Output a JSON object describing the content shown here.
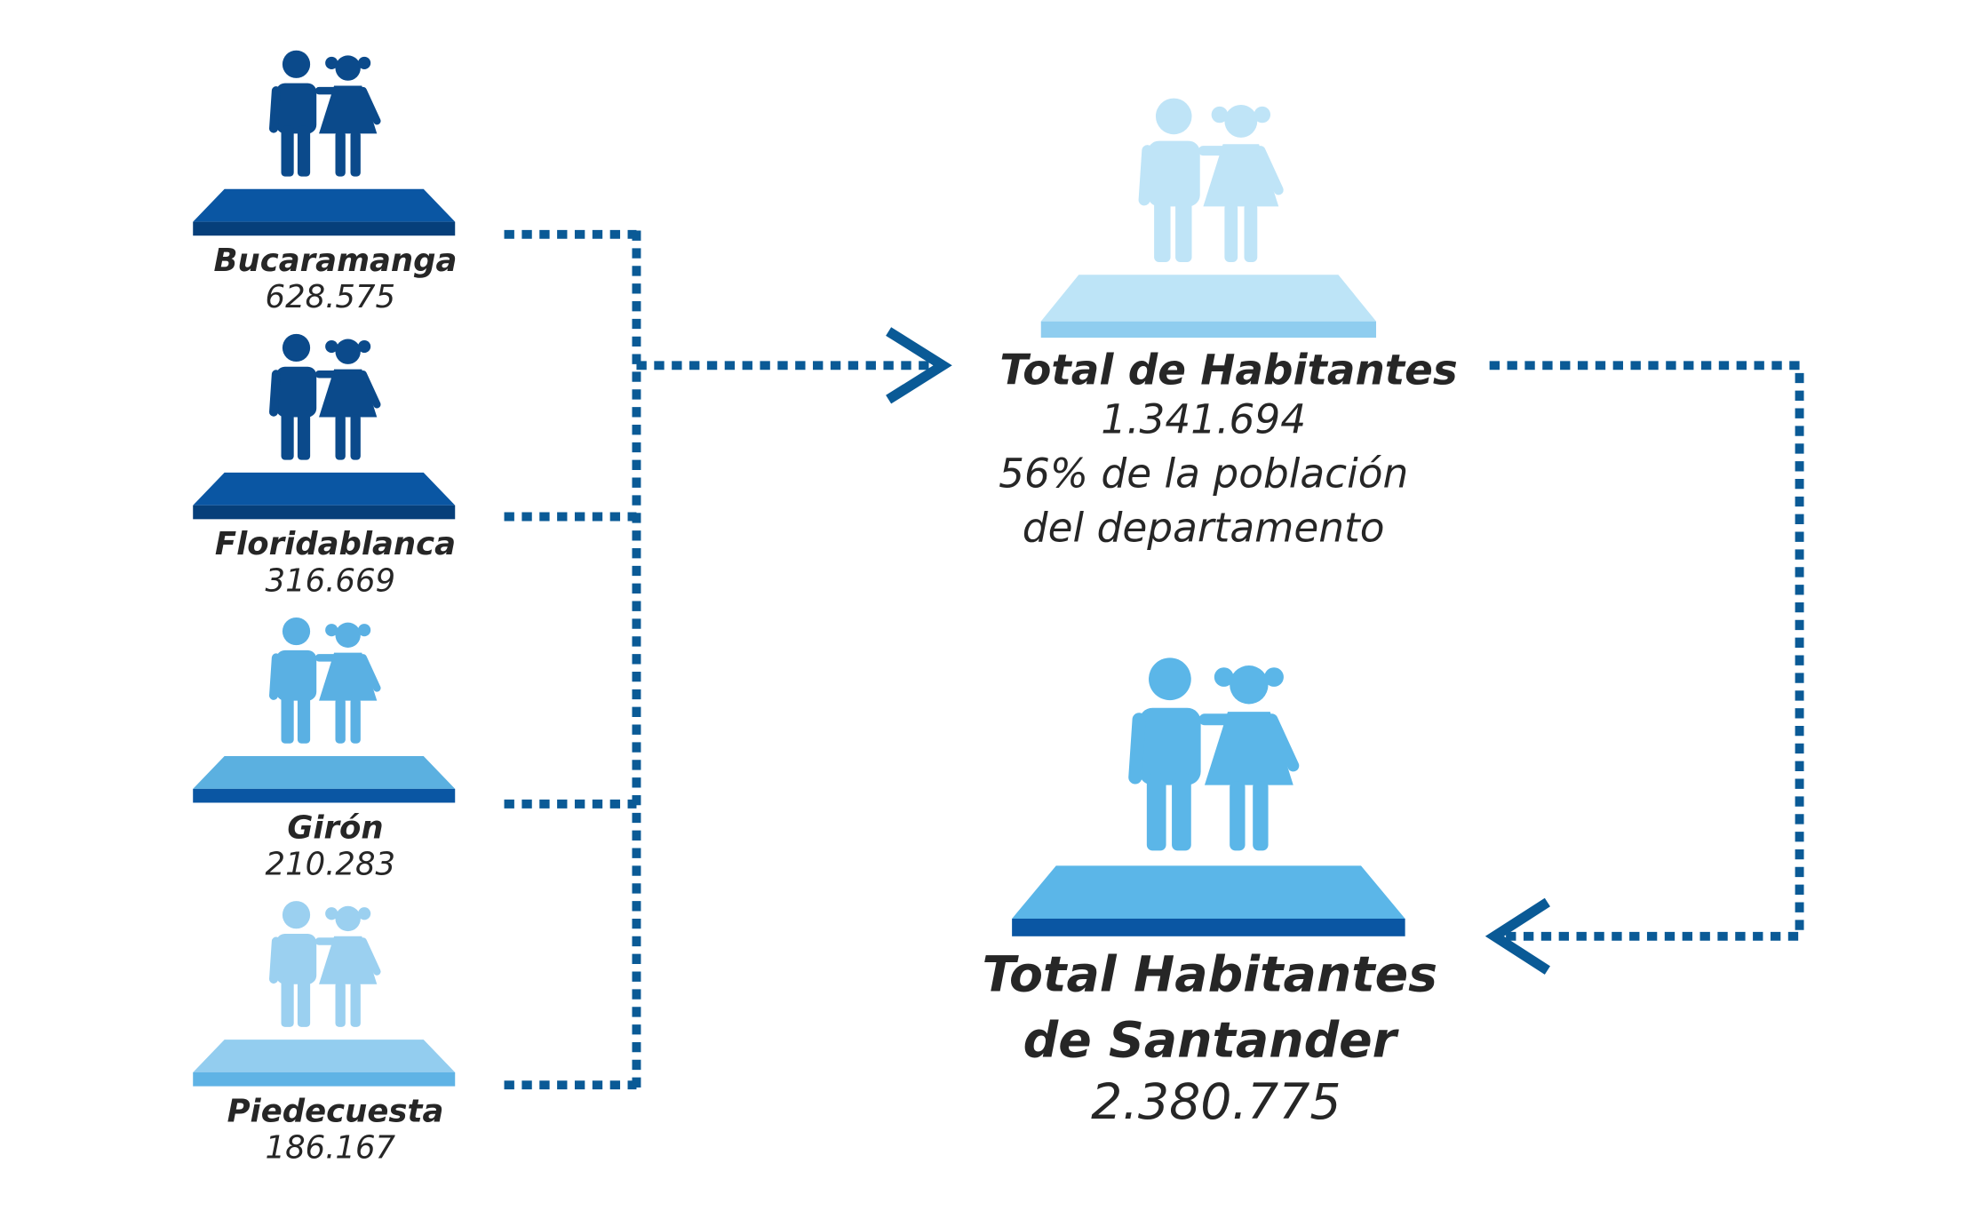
{
  "cities": [
    {
      "name": "Bucaramanga",
      "population": "628.575"
    },
    {
      "name": "Floridablanca",
      "population": "316.669"
    },
    {
      "name": "Girón",
      "population": "210.283"
    },
    {
      "name": "Piedecuesta",
      "population": "186.167"
    }
  ],
  "metro_total": {
    "title": "Total de Habitantes",
    "value": "1.341.694",
    "note": [
      "56% de la población",
      "del departamento"
    ]
  },
  "department_total": {
    "title": [
      "Total Habitantes",
      "de Santander"
    ],
    "value": "2.380.775"
  }
}
